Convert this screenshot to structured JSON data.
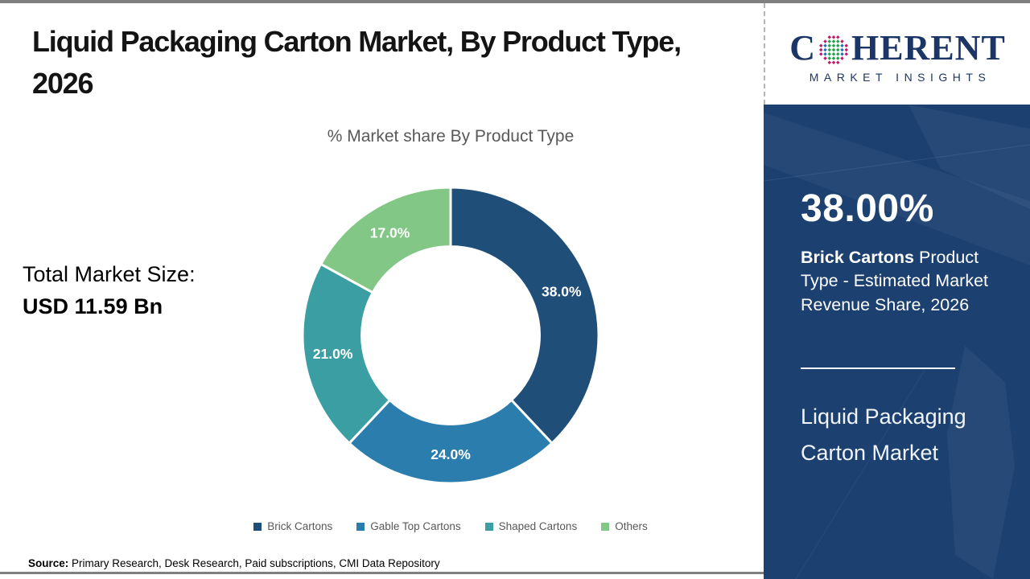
{
  "page": {
    "title": "Liquid Packaging Carton Market, By Product Type, 2026",
    "source_label": "Source:",
    "source_text": " Primary Research, Desk Research, Paid subscriptions, CMI Data Repository"
  },
  "left": {
    "total_label": "Total Market Size:",
    "total_value": "USD 11.59 Bn"
  },
  "chart_data": {
    "type": "pie",
    "subtype": "donut",
    "title": "% Market share By Product Type",
    "categories": [
      "Brick Cartons",
      "Gable Top Cartons",
      "Shaped Cartons",
      "Others"
    ],
    "values": [
      38.0,
      24.0,
      21.0,
      17.0
    ],
    "labels": [
      "38.0%",
      "24.0%",
      "21.0%",
      "17.0%"
    ],
    "colors": [
      "#1f4e79",
      "#2a7dad",
      "#3b9ea3",
      "#82c786"
    ],
    "start_angle_deg": 0,
    "direction": "clockwise",
    "inner_radius_ratio": 0.6,
    "legend_position": "bottom",
    "label_color": "#ffffff"
  },
  "right_panel": {
    "stat_value": "38.00%",
    "stat_bold": "Brick Cartons",
    "stat_rest": " Product Type - Estimated Market Revenue Share, 2026",
    "market_name": "Liquid Packaging Carton Market",
    "background": "#1c4070"
  },
  "logo": {
    "prefix": "C",
    "suffix": "HERENT",
    "tagline": "MARKET INSIGHTS",
    "navy": "#1b3666",
    "dot_colors": [
      "#c2186b",
      "#1f6fb4",
      "#21a14c"
    ]
  }
}
